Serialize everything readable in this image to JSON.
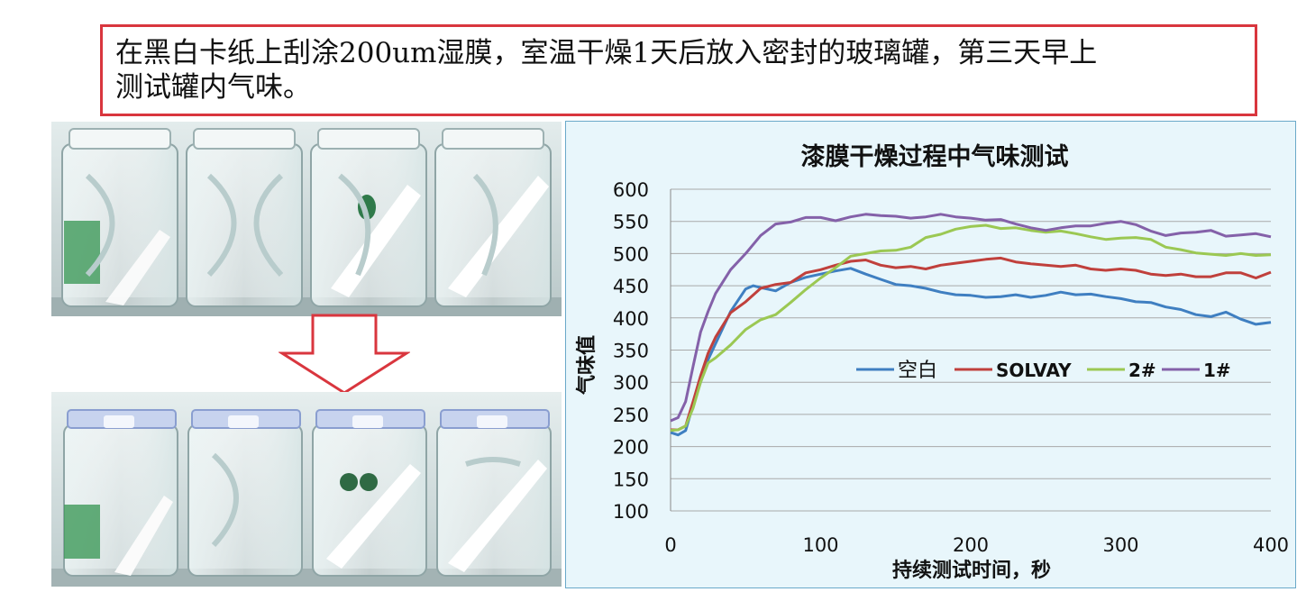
{
  "note": {
    "line1": "在黑白卡纸上刮涂200um湿膜，室温干燥1天后放入密封的玻璃罐，第三天早上",
    "line2": "测试罐内气味。"
  },
  "photos": {
    "top": "four-open-glass-jars-with-drawdown-cards",
    "bottom": "four-sealed-glass-jars-with-blue-lids"
  },
  "arrow": {
    "icon": "down-arrow-icon",
    "color": "#d9363e"
  },
  "chart_data": {
    "type": "line",
    "title": "漆膜干燥过程中气味测试",
    "xlabel": "持续测试时间，秒",
    "ylabel": "气味值",
    "xlim": [
      0,
      400
    ],
    "ylim": [
      100,
      600
    ],
    "xticks": [
      0,
      100,
      200,
      300,
      400
    ],
    "yticks": [
      100,
      150,
      200,
      250,
      300,
      350,
      400,
      450,
      500,
      550,
      600
    ],
    "grid": "horizontal",
    "legend": "center-right",
    "series": [
      {
        "name": "空白",
        "color": "#3f7fc1",
        "x": [
          0,
          5,
          10,
          15,
          20,
          25,
          30,
          40,
          50,
          55,
          60,
          70,
          80,
          90,
          100,
          110,
          120,
          130,
          140,
          150,
          160,
          170,
          180,
          190,
          200,
          210,
          220,
          230,
          240,
          250,
          260,
          270,
          280,
          290,
          300,
          310,
          320,
          330,
          340,
          350,
          360,
          370,
          380,
          390,
          400
        ],
        "y": [
          222,
          218,
          225,
          265,
          300,
          335,
          360,
          410,
          445,
          450,
          447,
          442,
          455,
          463,
          468,
          473,
          477,
          468,
          460,
          452,
          450,
          446,
          440,
          436,
          435,
          432,
          433,
          436,
          432,
          435,
          440,
          436,
          437,
          433,
          430,
          425,
          424,
          417,
          413,
          405,
          402,
          409,
          398,
          390,
          393
        ]
      },
      {
        "name": "SOLVAY",
        "color": "#c0403c",
        "x": [
          0,
          5,
          10,
          15,
          20,
          25,
          30,
          40,
          50,
          60,
          70,
          80,
          90,
          100,
          110,
          120,
          130,
          140,
          150,
          160,
          170,
          180,
          190,
          200,
          210,
          220,
          230,
          240,
          250,
          260,
          270,
          280,
          290,
          300,
          310,
          320,
          330,
          340,
          350,
          360,
          370,
          380,
          390,
          400
        ],
        "y": [
          226,
          226,
          232,
          270,
          310,
          345,
          370,
          408,
          425,
          446,
          452,
          455,
          470,
          475,
          482,
          488,
          490,
          482,
          478,
          480,
          476,
          482,
          485,
          488,
          491,
          493,
          487,
          484,
          482,
          480,
          482,
          476,
          474,
          476,
          474,
          468,
          466,
          468,
          464,
          464,
          470,
          470,
          462,
          471
        ]
      },
      {
        "name": "2#",
        "color": "#9bc853",
        "x": [
          0,
          5,
          10,
          15,
          20,
          25,
          30,
          40,
          50,
          60,
          70,
          80,
          90,
          100,
          110,
          120,
          130,
          140,
          150,
          160,
          170,
          180,
          190,
          200,
          210,
          220,
          230,
          240,
          250,
          260,
          270,
          280,
          290,
          300,
          310,
          320,
          330,
          340,
          350,
          360,
          370,
          380,
          390,
          400
        ],
        "y": [
          225,
          226,
          232,
          260,
          300,
          330,
          338,
          358,
          382,
          397,
          405,
          424,
          444,
          462,
          478,
          496,
          500,
          504,
          505,
          510,
          525,
          530,
          538,
          542,
          544,
          539,
          540,
          536,
          533,
          535,
          531,
          526,
          522,
          524,
          525,
          522,
          510,
          506,
          501,
          499,
          497,
          500,
          497,
          498
        ]
      },
      {
        "name": "1#",
        "color": "#8461a9",
        "x": [
          0,
          5,
          10,
          15,
          20,
          25,
          30,
          40,
          50,
          60,
          70,
          80,
          90,
          100,
          110,
          120,
          130,
          140,
          150,
          160,
          170,
          180,
          190,
          200,
          210,
          220,
          230,
          240,
          250,
          260,
          270,
          280,
          290,
          300,
          310,
          320,
          330,
          340,
          350,
          360,
          370,
          380,
          390,
          400
        ],
        "y": [
          240,
          245,
          270,
          325,
          378,
          410,
          438,
          475,
          500,
          528,
          546,
          549,
          556,
          556,
          551,
          557,
          561,
          559,
          558,
          555,
          557,
          561,
          557,
          555,
          552,
          553,
          546,
          540,
          536,
          540,
          543,
          543,
          547,
          550,
          545,
          535,
          528,
          532,
          533,
          536,
          527,
          529,
          531,
          526
        ]
      }
    ]
  }
}
